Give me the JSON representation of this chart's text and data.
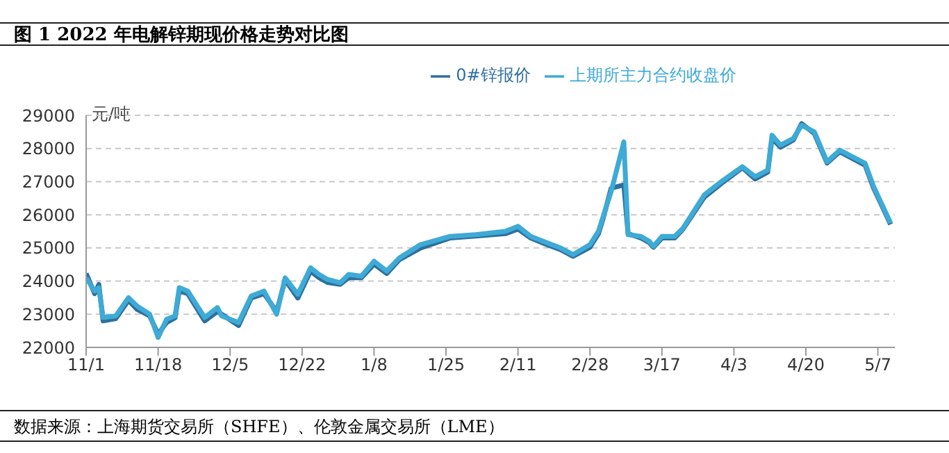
{
  "chart_data": {
    "type": "line",
    "title": "图 1  2022 年电解锌期现价格走势对比图",
    "ylabel": "元/吨",
    "annotations": [
      "数据来源：上海期货交易所（SHFE）、伦敦金属交易所（LME）"
    ],
    "x": [
      "2021-11-01",
      "2021-11-03",
      "2021-11-04",
      "2021-11-05",
      "2021-11-08",
      "2021-11-11",
      "2021-11-13",
      "2021-11-16",
      "2021-11-18",
      "2021-11-20",
      "2021-11-22",
      "2021-11-23",
      "2021-11-25",
      "2021-11-29",
      "2021-12-02",
      "2021-12-03",
      "2021-12-07",
      "2021-12-10",
      "2021-12-13",
      "2021-12-16",
      "2021-12-18",
      "2021-12-21",
      "2021-12-24",
      "2021-12-26",
      "2021-12-28",
      "2021-12-31",
      "2022-01-02",
      "2022-01-05",
      "2022-01-08",
      "2022-01-11",
      "2022-01-14",
      "2022-01-19",
      "2022-01-26",
      "2022-02-01",
      "2022-02-08",
      "2022-02-11",
      "2022-02-14",
      "2022-02-18",
      "2022-02-21",
      "2022-02-24",
      "2022-02-28",
      "2022-03-02",
      "2022-03-03",
      "2022-03-05",
      "2022-03-08",
      "2022-03-09",
      "2022-03-12",
      "2022-03-14",
      "2022-03-15",
      "2022-03-17",
      "2022-03-20",
      "2022-03-22",
      "2022-03-27",
      "2022-03-31",
      "2022-04-05",
      "2022-04-08",
      "2022-04-11",
      "2022-04-12",
      "2022-04-14",
      "2022-04-17",
      "2022-04-19",
      "2022-04-22",
      "2022-04-25",
      "2022-04-28",
      "2022-05-01",
      "2022-05-04",
      "2022-05-06",
      "2022-05-08",
      "2022-05-10"
    ],
    "series": [
      {
        "name": "0#锌报价",
        "color": "#2e6f9e",
        "values": [
          24230,
          23620,
          23900,
          22800,
          22870,
          23420,
          23150,
          22950,
          22400,
          22750,
          22890,
          23700,
          23620,
          22800,
          23080,
          23000,
          22660,
          23490,
          23620,
          23080,
          24040,
          23490,
          24300,
          24100,
          23960,
          23900,
          24100,
          24100,
          24510,
          24230,
          24650,
          25000,
          25300,
          25360,
          25430,
          25570,
          25300,
          25090,
          24950,
          24750,
          25020,
          25430,
          25840,
          26800,
          26900,
          25430,
          25300,
          25160,
          25020,
          25300,
          25300,
          25570,
          26530,
          26940,
          27420,
          27080,
          27290,
          28300,
          28040,
          28250,
          28750,
          28450,
          27560,
          27900,
          27700,
          27490,
          26800,
          26260,
          25710
        ]
      },
      {
        "name": "上期所主力合约收盘价",
        "color": "#3eaad6",
        "values": [
          24100,
          23700,
          23800,
          22900,
          22950,
          23500,
          23250,
          23000,
          22300,
          22850,
          22950,
          23800,
          23700,
          22900,
          23200,
          22950,
          22750,
          23550,
          23700,
          23000,
          24100,
          23600,
          24400,
          24200,
          24050,
          23950,
          24200,
          24150,
          24600,
          24300,
          24700,
          25100,
          25350,
          25400,
          25500,
          25650,
          25350,
          25150,
          25000,
          24800,
          25100,
          25500,
          25900,
          26700,
          28200,
          25400,
          25350,
          25200,
          25050,
          25350,
          25350,
          25600,
          26600,
          27000,
          27450,
          27150,
          27350,
          28400,
          28100,
          28300,
          28700,
          28500,
          27600,
          27950,
          27750,
          27550,
          26850,
          26300,
          25750
        ]
      }
    ],
    "xlim": [
      "2021-11-01",
      "2022-05-11"
    ],
    "xticks": [
      {
        "value": "2021-11-01",
        "label": "11/1"
      },
      {
        "value": "2021-11-18",
        "label": "11/18"
      },
      {
        "value": "2021-12-05",
        "label": "12/5"
      },
      {
        "value": "2021-12-22",
        "label": "12/22"
      },
      {
        "value": "2022-01-08",
        "label": "1/8"
      },
      {
        "value": "2022-01-25",
        "label": "1/25"
      },
      {
        "value": "2022-02-11",
        "label": "2/11"
      },
      {
        "value": "2022-02-28",
        "label": "2/28"
      },
      {
        "value": "2022-03-17",
        "label": "3/17"
      },
      {
        "value": "2022-04-03",
        "label": "4/3"
      },
      {
        "value": "2022-04-20",
        "label": "4/20"
      },
      {
        "value": "2022-05-07",
        "label": "5/7"
      }
    ],
    "ylim": [
      22000,
      29000
    ],
    "yticks": [
      22000,
      23000,
      24000,
      25000,
      26000,
      27000,
      28000,
      29000
    ],
    "grid": "y",
    "legend": "top",
    "marker": "none",
    "line_style": "solid"
  }
}
